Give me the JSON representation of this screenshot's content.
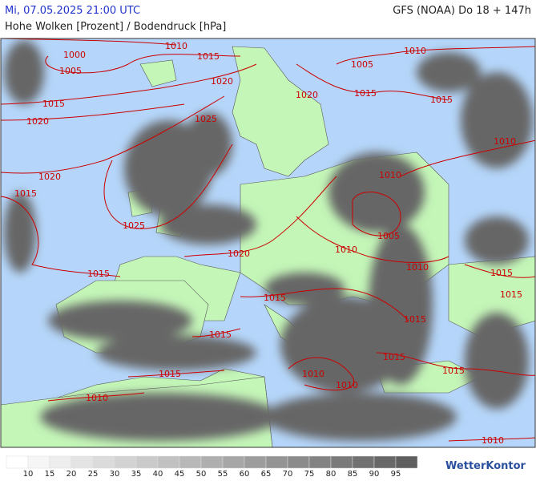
{
  "header": {
    "datetime": "Mi, 07.05.2025 21:00 UTC",
    "model": "GFS (NOAA) Do 18 + 147h",
    "title": "Hohe Wolken [Prozent] / Bodendruck [hPa]"
  },
  "isobar_labels": [
    "1010",
    "1015",
    "1000",
    "1005",
    "1020",
    "1015",
    "1020",
    "1025",
    "1020",
    "1015",
    "1025",
    "1015",
    "1020",
    "1005",
    "1015",
    "1020",
    "1010",
    "1015",
    "1010",
    "1010",
    "1005",
    "1010",
    "1010",
    "1015",
    "1015",
    "1015",
    "1015",
    "1015",
    "1015",
    "1015",
    "1010",
    "1010",
    "1015",
    "1010",
    "1010"
  ],
  "legend": {
    "labels": [
      "10",
      "15",
      "20",
      "25",
      "30",
      "35",
      "40",
      "45",
      "50",
      "55",
      "60",
      "65",
      "70",
      "75",
      "80",
      "85",
      "90",
      "95"
    ]
  },
  "logo": "WetterKontor"
}
